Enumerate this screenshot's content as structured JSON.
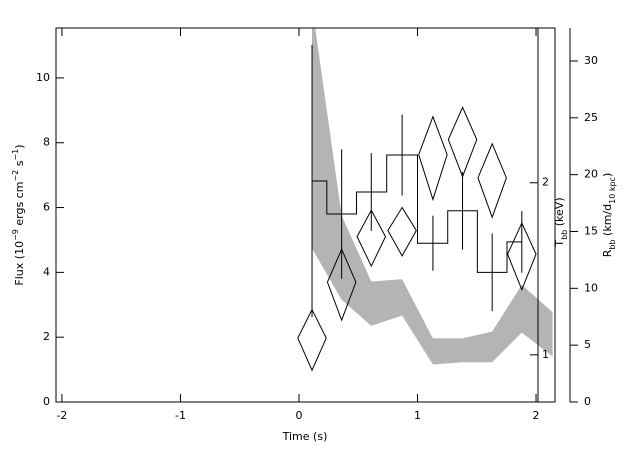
{
  "chart_data": {
    "type": "errorbar",
    "xlabel": "Time (s)",
    "xlim": [
      -2.05,
      2.16
    ],
    "xticks": [
      -2,
      -1,
      0,
      1,
      2
    ],
    "ylabel": [
      {
        "text": "Flux (10"
      },
      {
        "text": "−9",
        "sup": true
      },
      {
        "text": " ergs cm"
      },
      {
        "text": "−2",
        "sup": true
      },
      {
        "text": " s"
      },
      {
        "text": "−1",
        "sup": true
      },
      {
        "text": ")"
      }
    ],
    "ylim": [
      0,
      11.54
    ],
    "yticks": [
      0,
      2,
      4,
      6,
      8,
      10
    ],
    "y3label": [
      {
        "text": "T"
      },
      {
        "text": "bb",
        "sub": true
      },
      {
        "text": " (keV)"
      }
    ],
    "y3lim": [
      0.827,
      3.73
    ],
    "y3ticks": [
      1,
      2
    ],
    "y3scale": "log",
    "y2label": [
      {
        "text": "R"
      },
      {
        "text": "bb",
        "sub": true
      },
      {
        "text": " (km/d"
      },
      {
        "text": "10 kpc",
        "sub": true
      },
      {
        "text": ")"
      }
    ],
    "y2lim": [
      0,
      32.9
    ],
    "y2ticks": [
      0,
      5,
      10,
      15,
      20,
      25,
      30
    ],
    "series": [
      {
        "style": "band",
        "axis": "y2",
        "color": "#b4b4b4",
        "x": [
          0.11,
          0.36,
          0.61,
          0.87,
          1.13,
          1.38,
          1.63,
          1.88,
          2.14
        ],
        "upper": [
          34.9,
          16.4,
          10.6,
          10.8,
          5.6,
          5.6,
          6.2,
          10.3,
          7.9
        ],
        "lower": [
          13.5,
          9.0,
          6.7,
          7.6,
          3.3,
          3.5,
          3.5,
          6.1,
          4.0
        ]
      },
      {
        "style": "step",
        "axis": "y",
        "color": "#000000",
        "x": [
          0.11,
          0.36,
          0.61,
          0.87,
          1.13,
          1.38,
          1.63,
          1.88
        ],
        "values": [
          6.82,
          5.8,
          6.48,
          7.62,
          4.9,
          5.9,
          4.0,
          4.94
        ],
        "errors": [
          4.2,
          2.0,
          1.2,
          1.25,
          0.85,
          1.2,
          1.2,
          0.95
        ]
      },
      {
        "style": "diamond",
        "axis": "y3",
        "color": "#000000",
        "x": [
          0.11,
          0.36,
          0.61,
          0.87,
          1.13,
          1.38,
          1.63,
          1.88
        ],
        "xerrors": [
          0.12,
          0.12,
          0.12,
          0.12,
          0.12,
          0.12,
          0.12,
          0.12
        ],
        "values": [
          1.07,
          1.34,
          1.61,
          1.65,
          2.24,
          2.38,
          2.04,
          1.5
        ],
        "errors": [
          0.13,
          0.19,
          0.18,
          0.16,
          0.37,
          0.33,
          0.3,
          0.2
        ]
      }
    ]
  }
}
